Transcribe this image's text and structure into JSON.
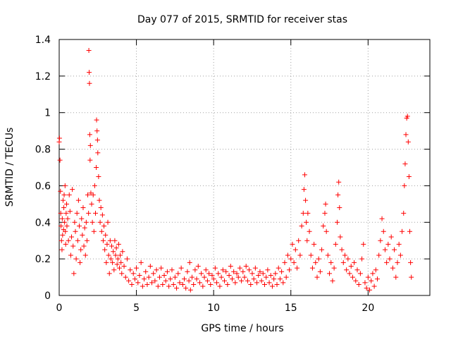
{
  "chart_data": {
    "type": "scatter",
    "title": "Day 077 of 2015, SRMTID for receiver stas",
    "xlabel": "GPS time / hours",
    "ylabel": "SRMTID / TECUs",
    "xlim": [
      0,
      24
    ],
    "ylim": [
      0,
      1.4
    ],
    "xticks": [
      "0",
      "5",
      "10",
      "15",
      "20"
    ],
    "xtick_values": [
      0,
      5,
      10,
      15,
      20
    ],
    "yticks": [
      "0",
      "0.2",
      "0.4",
      "0.6",
      "0.8",
      "1",
      "1.2",
      "1.4"
    ],
    "ytick_values": [
      0,
      0.2,
      0.4,
      0.6,
      0.8,
      1.0,
      1.2,
      1.4
    ],
    "grid": true,
    "marker": "+",
    "color": "#ff0000",
    "series": [
      {
        "name": "SRMTID",
        "points": [
          [
            0.0,
            0.84
          ],
          [
            0.02,
            0.86
          ],
          [
            0.05,
            0.74
          ],
          [
            0.08,
            0.57
          ],
          [
            0.1,
            0.45
          ],
          [
            0.12,
            0.38
          ],
          [
            0.15,
            0.3
          ],
          [
            0.18,
            0.25
          ],
          [
            0.2,
            0.42
          ],
          [
            0.22,
            0.33
          ],
          [
            0.25,
            0.52
          ],
          [
            0.28,
            0.36
          ],
          [
            0.3,
            0.48
          ],
          [
            0.32,
            0.55
          ],
          [
            0.35,
            0.4
          ],
          [
            0.38,
            0.6
          ],
          [
            0.4,
            0.35
          ],
          [
            0.42,
            0.28
          ],
          [
            0.45,
            0.45
          ],
          [
            0.48,
            0.5
          ],
          [
            0.5,
            0.38
          ],
          [
            0.55,
            0.42
          ],
          [
            0.6,
            0.3
          ],
          [
            0.65,
            0.55
          ],
          [
            0.7,
            0.46
          ],
          [
            0.75,
            0.22
          ],
          [
            0.8,
            0.32
          ],
          [
            0.85,
            0.58
          ],
          [
            0.9,
            0.27
          ],
          [
            0.95,
            0.12
          ],
          [
            1.0,
            0.4
          ],
          [
            1.05,
            0.35
          ],
          [
            1.1,
            0.2
          ],
          [
            1.15,
            0.45
          ],
          [
            1.2,
            0.3
          ],
          [
            1.25,
            0.52
          ],
          [
            1.3,
            0.38
          ],
          [
            1.35,
            0.18
          ],
          [
            1.4,
            0.25
          ],
          [
            1.45,
            0.42
          ],
          [
            1.5,
            0.33
          ],
          [
            1.55,
            0.48
          ],
          [
            1.6,
            0.27
          ],
          [
            1.65,
            0.37
          ],
          [
            1.7,
            0.22
          ],
          [
            1.75,
            0.4
          ],
          [
            1.8,
            0.3
          ],
          [
            1.85,
            0.55
          ],
          [
            1.9,
            0.45
          ],
          [
            1.92,
            1.34
          ],
          [
            1.94,
            1.22
          ],
          [
            1.96,
            1.16
          ],
          [
            1.98,
            0.88
          ],
          [
            2.0,
            0.74
          ],
          [
            2.02,
            0.82
          ],
          [
            2.05,
            0.56
          ],
          [
            2.1,
            0.5
          ],
          [
            2.15,
            0.4
          ],
          [
            2.2,
            0.55
          ],
          [
            2.25,
            0.35
          ],
          [
            2.3,
            0.6
          ],
          [
            2.35,
            0.45
          ],
          [
            2.4,
            0.7
          ],
          [
            2.42,
            0.96
          ],
          [
            2.45,
            0.9
          ],
          [
            2.48,
            0.85
          ],
          [
            2.5,
            0.78
          ],
          [
            2.55,
            0.65
          ],
          [
            2.6,
            0.52
          ],
          [
            2.65,
            0.4
          ],
          [
            2.7,
            0.48
          ],
          [
            2.75,
            0.35
          ],
          [
            2.8,
            0.44
          ],
          [
            2.85,
            0.3
          ],
          [
            2.9,
            0.38
          ],
          [
            2.95,
            0.25
          ],
          [
            3.0,
            0.33
          ],
          [
            3.05,
            0.18
          ],
          [
            3.1,
            0.28
          ],
          [
            3.15,
            0.4
          ],
          [
            3.2,
            0.22
          ],
          [
            3.25,
            0.12
          ],
          [
            3.3,
            0.3
          ],
          [
            3.35,
            0.2
          ],
          [
            3.4,
            0.27
          ],
          [
            3.45,
            0.18
          ],
          [
            3.5,
            0.24
          ],
          [
            3.55,
            0.14
          ],
          [
            3.6,
            0.3
          ],
          [
            3.65,
            0.22
          ],
          [
            3.7,
            0.26
          ],
          [
            3.75,
            0.17
          ],
          [
            3.8,
            0.2
          ],
          [
            3.85,
            0.28
          ],
          [
            3.9,
            0.15
          ],
          [
            3.95,
            0.22
          ],
          [
            4.0,
            0.18
          ],
          [
            4.05,
            0.12
          ],
          [
            4.1,
            0.24
          ],
          [
            4.2,
            0.16
          ],
          [
            4.3,
            0.1
          ],
          [
            4.4,
            0.2
          ],
          [
            4.5,
            0.08
          ],
          [
            4.6,
            0.14
          ],
          [
            4.7,
            0.06
          ],
          [
            4.8,
            0.12
          ],
          [
            4.9,
            0.09
          ],
          [
            5.0,
            0.15
          ],
          [
            5.1,
            0.07
          ],
          [
            5.2,
            0.11
          ],
          [
            5.3,
            0.18
          ],
          [
            5.4,
            0.05
          ],
          [
            5.5,
            0.09
          ],
          [
            5.6,
            0.13
          ],
          [
            5.7,
            0.06
          ],
          [
            5.8,
            0.1
          ],
          [
            5.9,
            0.16
          ],
          [
            6.0,
            0.07
          ],
          [
            6.1,
            0.12
          ],
          [
            6.2,
            0.08
          ],
          [
            6.3,
            0.14
          ],
          [
            6.4,
            0.05
          ],
          [
            6.5,
            0.1
          ],
          [
            6.6,
            0.15
          ],
          [
            6.7,
            0.06
          ],
          [
            6.8,
            0.11
          ],
          [
            6.9,
            0.08
          ],
          [
            7.0,
            0.13
          ],
          [
            7.1,
            0.05
          ],
          [
            7.2,
            0.09
          ],
          [
            7.3,
            0.14
          ],
          [
            7.4,
            0.06
          ],
          [
            7.5,
            0.1
          ],
          [
            7.6,
            0.04
          ],
          [
            7.7,
            0.12
          ],
          [
            7.8,
            0.07
          ],
          [
            7.9,
            0.15
          ],
          [
            8.0,
            0.06
          ],
          [
            8.1,
            0.09
          ],
          [
            8.2,
            0.04
          ],
          [
            8.3,
            0.13
          ],
          [
            8.4,
            0.08
          ],
          [
            8.45,
            0.18
          ],
          [
            8.5,
            0.03
          ],
          [
            8.6,
            0.1
          ],
          [
            8.7,
            0.06
          ],
          [
            8.8,
            0.14
          ],
          [
            8.9,
            0.09
          ],
          [
            9.0,
            0.16
          ],
          [
            9.1,
            0.07
          ],
          [
            9.2,
            0.12
          ],
          [
            9.3,
            0.05
          ],
          [
            9.4,
            0.1
          ],
          [
            9.5,
            0.14
          ],
          [
            9.6,
            0.08
          ],
          [
            9.7,
            0.12
          ],
          [
            9.8,
            0.06
          ],
          [
            9.9,
            0.11
          ],
          [
            10.0,
            0.09
          ],
          [
            10.1,
            0.15
          ],
          [
            10.2,
            0.07
          ],
          [
            10.3,
            0.12
          ],
          [
            10.4,
            0.05
          ],
          [
            10.5,
            0.1
          ],
          [
            10.6,
            0.14
          ],
          [
            10.7,
            0.08
          ],
          [
            10.8,
            0.13
          ],
          [
            10.9,
            0.06
          ],
          [
            11.0,
            0.11
          ],
          [
            11.1,
            0.16
          ],
          [
            11.2,
            0.09
          ],
          [
            11.3,
            0.13
          ],
          [
            11.4,
            0.07
          ],
          [
            11.5,
            0.12
          ],
          [
            11.6,
            0.1
          ],
          [
            11.7,
            0.15
          ],
          [
            11.8,
            0.08
          ],
          [
            11.9,
            0.13
          ],
          [
            12.0,
            0.1
          ],
          [
            12.1,
            0.16
          ],
          [
            12.2,
            0.08
          ],
          [
            12.3,
            0.14
          ],
          [
            12.4,
            0.06
          ],
          [
            12.5,
            0.12
          ],
          [
            12.6,
            0.09
          ],
          [
            12.7,
            0.15
          ],
          [
            12.8,
            0.07
          ],
          [
            12.9,
            0.11
          ],
          [
            13.0,
            0.13
          ],
          [
            13.1,
            0.08
          ],
          [
            13.2,
            0.12
          ],
          [
            13.3,
            0.06
          ],
          [
            13.4,
            0.1
          ],
          [
            13.5,
            0.14
          ],
          [
            13.6,
            0.07
          ],
          [
            13.7,
            0.11
          ],
          [
            13.8,
            0.05
          ],
          [
            13.9,
            0.09
          ],
          [
            14.0,
            0.12
          ],
          [
            14.1,
            0.06
          ],
          [
            14.2,
            0.15
          ],
          [
            14.3,
            0.09
          ],
          [
            14.4,
            0.13
          ],
          [
            14.5,
            0.07
          ],
          [
            14.6,
            0.18
          ],
          [
            14.7,
            0.1
          ],
          [
            14.8,
            0.22
          ],
          [
            14.9,
            0.14
          ],
          [
            15.0,
            0.2
          ],
          [
            15.1,
            0.28
          ],
          [
            15.2,
            0.18
          ],
          [
            15.3,
            0.25
          ],
          [
            15.4,
            0.15
          ],
          [
            15.5,
            0.3
          ],
          [
            15.6,
            0.22
          ],
          [
            15.7,
            0.38
          ],
          [
            15.8,
            0.45
          ],
          [
            15.85,
            0.58
          ],
          [
            15.9,
            0.66
          ],
          [
            15.95,
            0.52
          ],
          [
            16.0,
            0.4
          ],
          [
            16.05,
            0.3
          ],
          [
            16.1,
            0.45
          ],
          [
            16.2,
            0.35
          ],
          [
            16.3,
            0.22
          ],
          [
            16.4,
            0.15
          ],
          [
            16.5,
            0.28
          ],
          [
            16.6,
            0.18
          ],
          [
            16.7,
            0.1
          ],
          [
            16.8,
            0.2
          ],
          [
            16.9,
            0.13
          ],
          [
            17.0,
            0.25
          ],
          [
            17.1,
            0.38
          ],
          [
            17.2,
            0.45
          ],
          [
            17.25,
            0.5
          ],
          [
            17.3,
            0.35
          ],
          [
            17.4,
            0.22
          ],
          [
            17.5,
            0.12
          ],
          [
            17.6,
            0.18
          ],
          [
            17.7,
            0.08
          ],
          [
            17.8,
            0.15
          ],
          [
            17.9,
            0.28
          ],
          [
            18.0,
            0.4
          ],
          [
            18.05,
            0.55
          ],
          [
            18.1,
            0.62
          ],
          [
            18.15,
            0.48
          ],
          [
            18.2,
            0.32
          ],
          [
            18.3,
            0.25
          ],
          [
            18.4,
            0.18
          ],
          [
            18.5,
            0.22
          ],
          [
            18.6,
            0.14
          ],
          [
            18.7,
            0.2
          ],
          [
            18.8,
            0.12
          ],
          [
            18.9,
            0.16
          ],
          [
            19.0,
            0.1
          ],
          [
            19.1,
            0.18
          ],
          [
            19.2,
            0.08
          ],
          [
            19.3,
            0.14
          ],
          [
            19.4,
            0.06
          ],
          [
            19.5,
            0.12
          ],
          [
            19.6,
            0.2
          ],
          [
            19.7,
            0.28
          ],
          [
            19.8,
            0.07
          ],
          [
            19.9,
            0.04
          ],
          [
            20.0,
            0.1
          ],
          [
            20.1,
            0.03
          ],
          [
            20.2,
            0.08
          ],
          [
            20.3,
            0.12
          ],
          [
            20.4,
            0.05
          ],
          [
            20.5,
            0.14
          ],
          [
            20.6,
            0.09
          ],
          [
            20.7,
            0.22
          ],
          [
            20.8,
            0.3
          ],
          [
            20.9,
            0.42
          ],
          [
            21.0,
            0.35
          ],
          [
            21.1,
            0.25
          ],
          [
            21.2,
            0.18
          ],
          [
            21.3,
            0.28
          ],
          [
            21.4,
            0.2
          ],
          [
            21.5,
            0.32
          ],
          [
            21.6,
            0.15
          ],
          [
            21.7,
            0.25
          ],
          [
            21.8,
            0.1
          ],
          [
            21.9,
            0.18
          ],
          [
            22.0,
            0.28
          ],
          [
            22.1,
            0.22
          ],
          [
            22.2,
            0.35
          ],
          [
            22.3,
            0.45
          ],
          [
            22.35,
            0.6
          ],
          [
            22.4,
            0.72
          ],
          [
            22.45,
            0.88
          ],
          [
            22.5,
            0.97
          ],
          [
            22.55,
            0.98
          ],
          [
            22.6,
            0.84
          ],
          [
            22.65,
            0.65
          ],
          [
            22.7,
            0.35
          ],
          [
            22.75,
            0.18
          ],
          [
            22.8,
            0.1
          ]
        ]
      }
    ]
  }
}
